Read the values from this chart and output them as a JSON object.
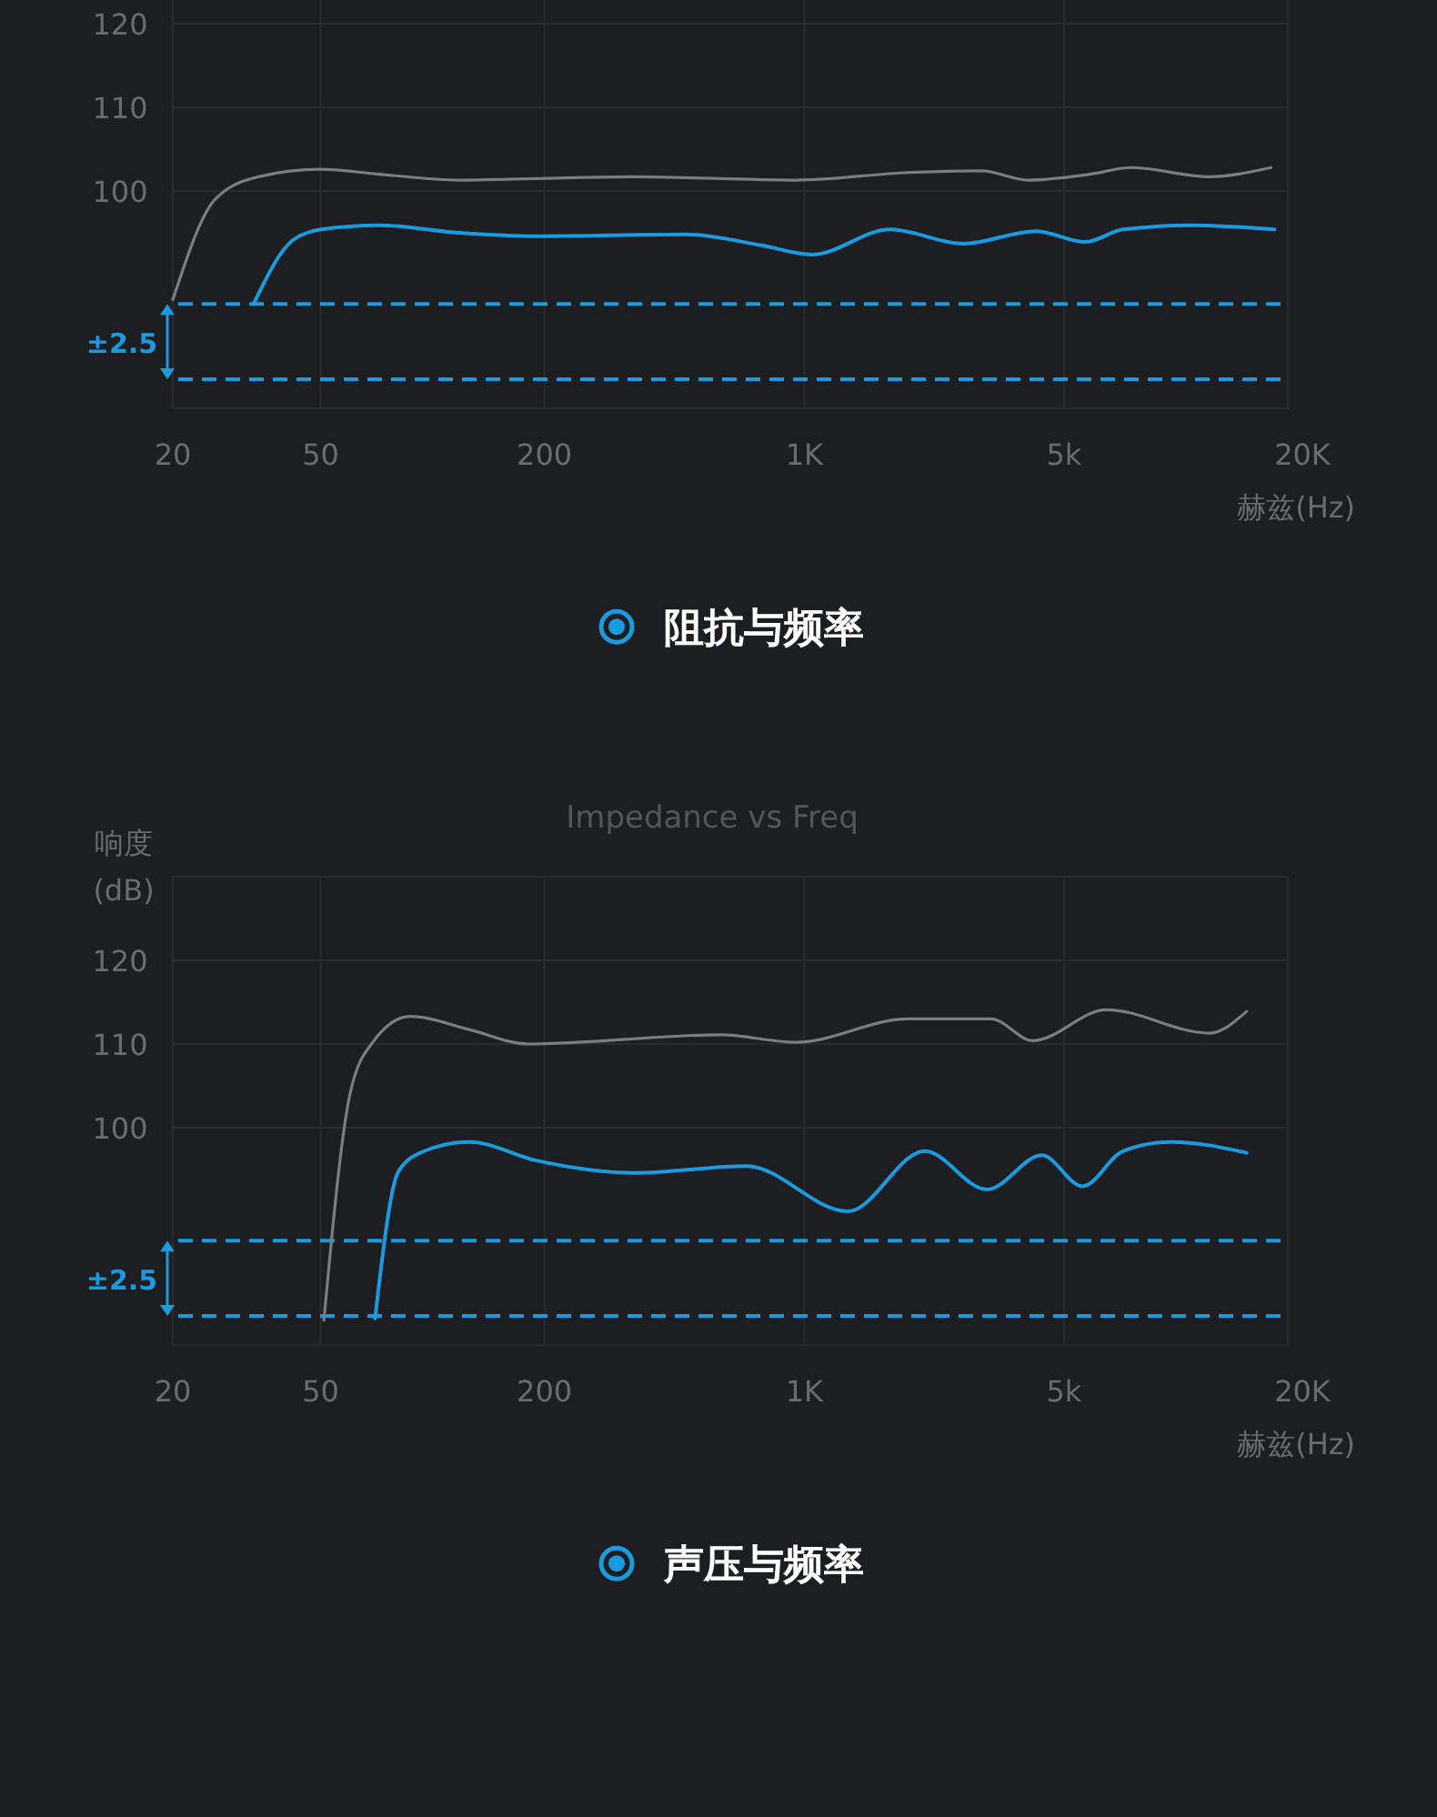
{
  "chart_data": [
    {
      "type": "line",
      "title": "阻抗与频率",
      "xlabel": "赫兹(Hz)",
      "log": "x",
      "grid": true,
      "xlim": [
        20,
        20000
      ],
      "ylim": [
        74,
        123
      ],
      "xticks": [
        20,
        50,
        200,
        {
          "value": 1000,
          "label": "1K"
        },
        {
          "value": 5000,
          "label": "5k"
        },
        {
          "value": 20000,
          "label": "20K"
        }
      ],
      "yticks": [
        100,
        110,
        120
      ],
      "annotations": [
        "±2.5"
      ],
      "ref_lines": [
        {
          "axis": "y",
          "value": 86.5,
          "color": "#1a9be0",
          "line_style": "dashed"
        },
        {
          "axis": "y",
          "value": 77.5,
          "color": "#1a9be0",
          "line_style": "dashed"
        }
      ],
      "series": [
        {
          "color": "#7d7d80",
          "x": [
            20,
            26,
            34,
            50,
            72,
            118,
            200,
            343,
            950,
            1900,
            3000,
            4000,
            5860,
            7600,
            12300,
            18000
          ],
          "values": [
            87,
            99,
            101.7,
            102.6,
            102,
            101.3,
            101.5,
            101.7,
            101.3,
            102.2,
            102.4,
            101.3,
            102,
            102.8,
            101.7,
            102.8
          ]
        },
        {
          "color": "#1a9be0",
          "x": [
            33,
            42,
            50,
            72,
            118,
            190,
            484,
            768,
            1050,
            1700,
            2680,
            4200,
            5700,
            7200,
            11000,
            18400
          ],
          "values": [
            86.5,
            94.1,
            95.4,
            95.9,
            95,
            94.6,
            94.8,
            93.5,
            92.4,
            95.4,
            93.7,
            95.2,
            93.9,
            95.4,
            95.9,
            95.4
          ]
        }
      ]
    },
    {
      "type": "line",
      "title": "声压与频率",
      "xlabel": "赫兹(Hz)",
      "ylabel": "响度\n(dB)",
      "log": "x",
      "grid": true,
      "xlim": [
        20,
        20000
      ],
      "ylim": [
        74,
        130
      ],
      "xticks": [
        20,
        50,
        200,
        {
          "value": 1000,
          "label": "1K"
        },
        {
          "value": 5000,
          "label": "5k"
        },
        {
          "value": 20000,
          "label": "20K"
        }
      ],
      "yticks": [
        100,
        110,
        120
      ],
      "annotations": [
        "±2.5",
        "Impedance vs Freq"
      ],
      "ref_lines": [
        {
          "axis": "y",
          "value": 86.5,
          "color": "#1a9be0",
          "line_style": "dashed"
        },
        {
          "axis": "y",
          "value": 77.5,
          "color": "#1a9be0",
          "line_style": "dashed"
        }
      ],
      "series": [
        {
          "color": "#7d7d80",
          "x": [
            51,
            60,
            69,
            87,
            126,
            181,
            596,
            950,
            1900,
            3180,
            4120,
            6500,
            12300,
            15500
          ],
          "values": [
            77,
            104.1,
            110.2,
            113.3,
            111.7,
            110,
            111.1,
            110.2,
            113,
            113,
            110.4,
            114.1,
            111.3,
            113.9
          ]
        },
        {
          "color": "#1a9be0",
          "x": [
            70,
            81,
            95,
            126,
            189,
            351,
            700,
            1310,
            2110,
            3100,
            4360,
            5600,
            7200,
            9700,
            15500
          ],
          "values": [
            77.2,
            94.8,
            97.2,
            98.3,
            96.1,
            94.6,
            95.4,
            90,
            97.2,
            92.6,
            96.7,
            93,
            97.2,
            98.3,
            97
          ]
        }
      ]
    }
  ]
}
